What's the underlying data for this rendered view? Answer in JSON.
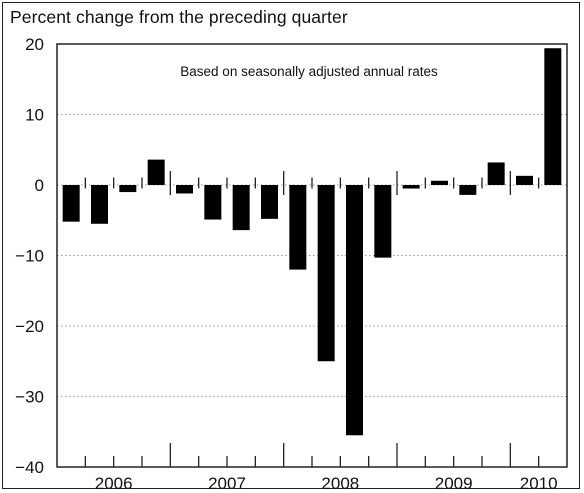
{
  "chart_data": {
    "type": "bar",
    "title": "",
    "ylabel": "Percent change from the preceding quarter",
    "xlabel": "",
    "annotation": "Based on seasonally adjusted annual rates",
    "ylim": [
      -40,
      20
    ],
    "yticks": [
      20,
      10,
      0,
      -10,
      -20,
      -30,
      -40
    ],
    "ytick_labels": [
      "20",
      "10",
      "0",
      "−10",
      "−20",
      "−30",
      "−40"
    ],
    "grid": "horizontal dotted",
    "years": [
      {
        "label": "2006",
        "quarters": 4
      },
      {
        "label": "2007",
        "quarters": 4
      },
      {
        "label": "2008",
        "quarters": 4
      },
      {
        "label": "2009",
        "quarters": 4
      },
      {
        "label": "2010",
        "quarters": 2
      }
    ],
    "categories": [
      "2006 Q1",
      "2006 Q2",
      "2006 Q3",
      "2006 Q4",
      "2007 Q1",
      "2007 Q2",
      "2007 Q3",
      "2007 Q4",
      "2008 Q1",
      "2008 Q2",
      "2008 Q3",
      "2008 Q4",
      "2009 Q1",
      "2009 Q2",
      "2009 Q3",
      "2009 Q4",
      "2010 Q1",
      "2010 Q2"
    ],
    "values": [
      -5.2,
      -5.5,
      -1.0,
      3.6,
      -1.2,
      -4.9,
      -6.4,
      -4.8,
      -12.0,
      -25.0,
      -35.5,
      -10.3,
      -0.5,
      0.6,
      -1.4,
      3.2,
      1.3,
      19.4
    ],
    "bar_color": "#000000"
  }
}
